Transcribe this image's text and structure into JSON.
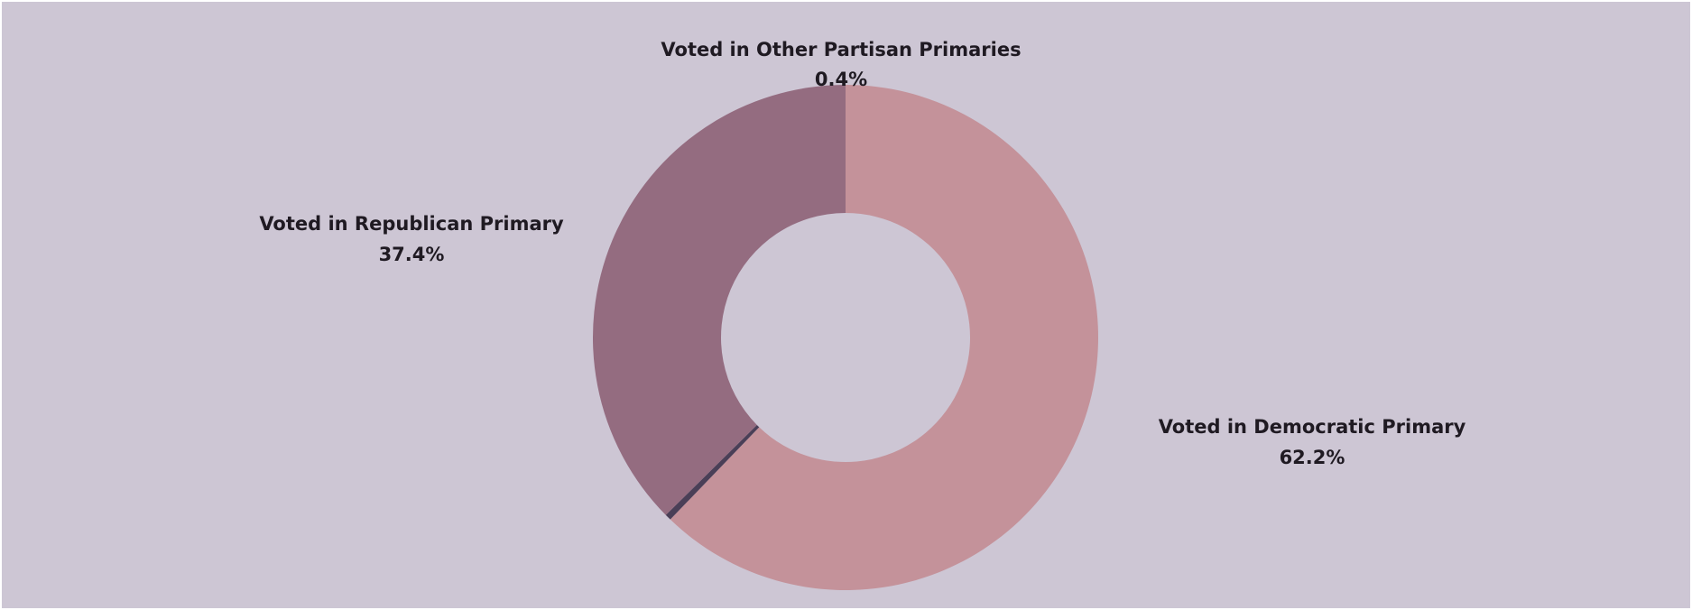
{
  "chart_data": {
    "type": "pie",
    "style": "donut",
    "categories": [
      "Voted in Democratic Primary",
      "Voted in Other Partisan Primaries",
      "Voted in Republican Primary"
    ],
    "values": [
      62.2,
      0.4,
      37.4
    ],
    "value_labels": [
      "62.2%",
      "0.4%",
      "37.4%"
    ],
    "colors": [
      "#c4929a",
      "#4a3f57",
      "#946c80"
    ],
    "background": "#cdc6d4",
    "legend": "none"
  }
}
